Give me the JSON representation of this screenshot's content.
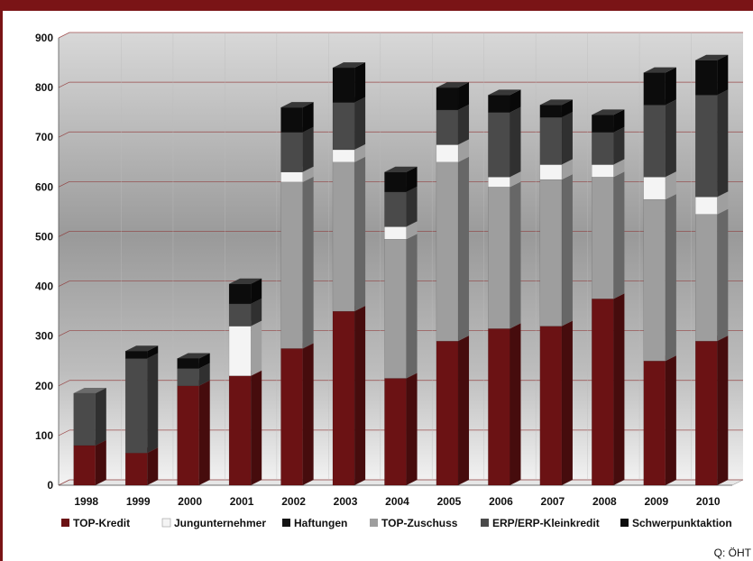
{
  "chart_data": {
    "type": "bar",
    "stacked": true,
    "title": "",
    "xlabel": "",
    "ylabel": "",
    "ylim": [
      0,
      900
    ],
    "yticks": [
      0,
      100,
      200,
      300,
      400,
      500,
      600,
      700,
      800,
      900
    ],
    "categories": [
      "1998",
      "1999",
      "2000",
      "2001",
      "2002",
      "2003",
      "2004",
      "2005",
      "2006",
      "2007",
      "2008",
      "2009",
      "2010"
    ],
    "series": [
      {
        "name": "TOP-Kredit",
        "color": "#6b1214",
        "values": [
          80,
          65,
          200,
          220,
          275,
          350,
          215,
          290,
          315,
          320,
          375,
          250,
          290
        ]
      },
      {
        "name": "TOP-Zuschuss",
        "color": "#9e9e9e",
        "values": [
          0,
          0,
          0,
          0,
          335,
          300,
          280,
          360,
          285,
          295,
          245,
          325,
          255
        ]
      },
      {
        "name": "Jungunternehmer",
        "color": "#f4f4f4",
        "values": [
          0,
          0,
          0,
          100,
          20,
          25,
          25,
          35,
          20,
          30,
          25,
          45,
          35
        ]
      },
      {
        "name": "ERP/ERP-Kleinkredit",
        "color": "#4a4a4a",
        "values": [
          105,
          190,
          35,
          45,
          80,
          95,
          70,
          70,
          130,
          95,
          65,
          145,
          205
        ]
      },
      {
        "name": "Haftungen",
        "color": "#141414",
        "values": [
          0,
          0,
          0,
          0,
          0,
          0,
          0,
          0,
          0,
          0,
          0,
          0,
          0
        ]
      },
      {
        "name": "Schwerpunktaktion",
        "color": "#0c0c0c",
        "values": [
          0,
          15,
          20,
          40,
          50,
          70,
          40,
          45,
          35,
          25,
          35,
          65,
          70
        ]
      }
    ],
    "legend": {
      "placement": "bottom",
      "order": [
        "TOP-Kredit",
        "Jungunternehmer",
        "Haftungen",
        "TOP-Zuschuss",
        "ERP/ERP-Kleinkredit",
        "Schwerpunktaktion"
      ]
    },
    "grid": true,
    "source_note": "Q: ÖHT"
  }
}
